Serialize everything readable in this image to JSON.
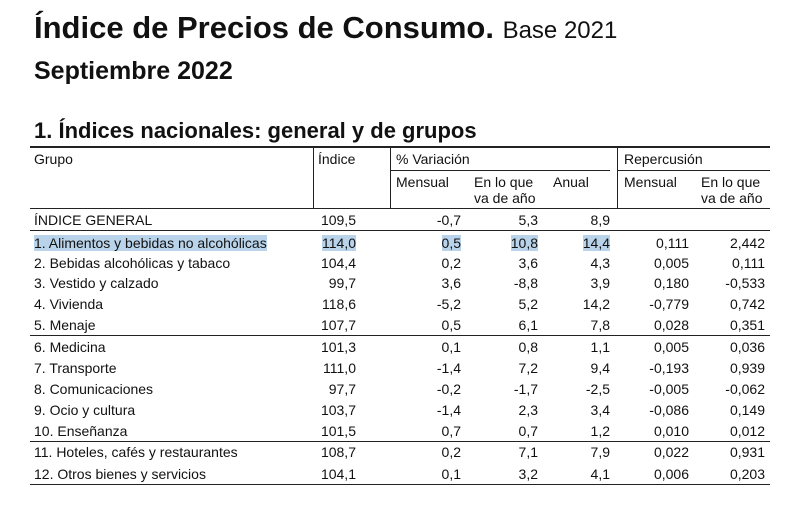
{
  "header": {
    "title": "Índice de Precios de Consumo.",
    "base": "Base 2021",
    "period": "Septiembre 2022"
  },
  "section": {
    "title": "1. Índices nacionales: general y de grupos"
  },
  "table": {
    "headers": {
      "group": "Grupo",
      "index": "Índice",
      "variation": "% Variación",
      "repercussion": "Repercusión",
      "var_monthly": "Mensual",
      "var_ytd": "En lo que va de año",
      "var_annual": "Anual",
      "rep_monthly": "Mensual",
      "rep_ytd": "En lo que va de año"
    },
    "rows": [
      [
        "ÍNDICE GENERAL",
        "109,5",
        "-0,7",
        "5,3",
        "8,9",
        "",
        ""
      ],
      [
        "1. Alimentos y bebidas no alcohólicas",
        "114,0",
        "0,5",
        "10,8",
        "14,4",
        "0,111",
        "2,442"
      ],
      [
        "2. Bebidas alcohólicas y tabaco",
        "104,4",
        "0,2",
        "3,6",
        "4,3",
        "0,005",
        "0,111"
      ],
      [
        "3. Vestido y calzado",
        "99,7",
        "3,6",
        "-8,8",
        "3,9",
        "0,180",
        "-0,533"
      ],
      [
        "4. Vivienda",
        "118,6",
        "-5,2",
        "5,2",
        "14,2",
        "-0,779",
        "0,742"
      ],
      [
        "5. Menaje",
        "107,7",
        "0,5",
        "6,1",
        "7,8",
        "0,028",
        "0,351"
      ],
      [
        "6. Medicina",
        "101,3",
        "0,1",
        "0,8",
        "1,1",
        "0,005",
        "0,036"
      ],
      [
        "7. Transporte",
        "111,0",
        "-1,4",
        "7,2",
        "9,4",
        "-0,193",
        "0,939"
      ],
      [
        "8. Comunicaciones",
        "97,7",
        "-0,2",
        "-1,7",
        "-2,5",
        "-0,005",
        "-0,062"
      ],
      [
        "9. Ocio y cultura",
        "103,7",
        "-1,4",
        "2,3",
        "3,4",
        "-0,086",
        "0,149"
      ],
      [
        "10. Enseñanza",
        "101,5",
        "0,7",
        "0,7",
        "1,2",
        "0,010",
        "0,012"
      ],
      [
        "11. Hoteles, cafés y restaurantes",
        "108,7",
        "0,2",
        "7,1",
        "7,9",
        "0,022",
        "0,931"
      ],
      [
        "12. Otros bienes y servicios",
        "104,1",
        "0,1",
        "3,2",
        "4,1",
        "0,006",
        "0,203"
      ]
    ]
  }
}
